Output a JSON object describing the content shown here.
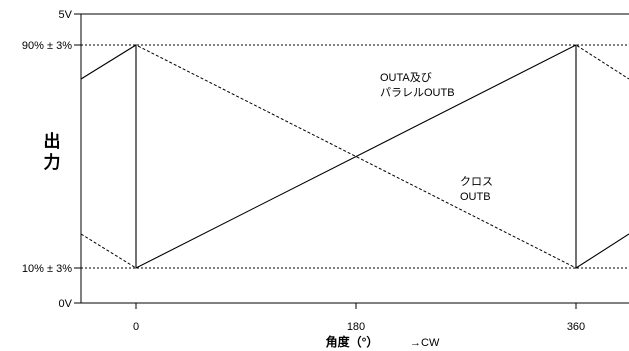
{
  "y_ticks": {
    "top": "5V",
    "high": "90% ± 3%",
    "low": "10% ± 3%",
    "bottom": "0V"
  },
  "y_axis_title": [
    "出",
    "力"
  ],
  "x_ticks": [
    "0",
    "180",
    "360"
  ],
  "x_axis_title": "角度（°）",
  "x_direction_label": "→CW",
  "labels": {
    "solid_line_1": "OUTA及び",
    "solid_line_2": "パラレルOUTB",
    "dashed_line_1": "クロス",
    "dashed_line_2": "OUTB"
  }
}
